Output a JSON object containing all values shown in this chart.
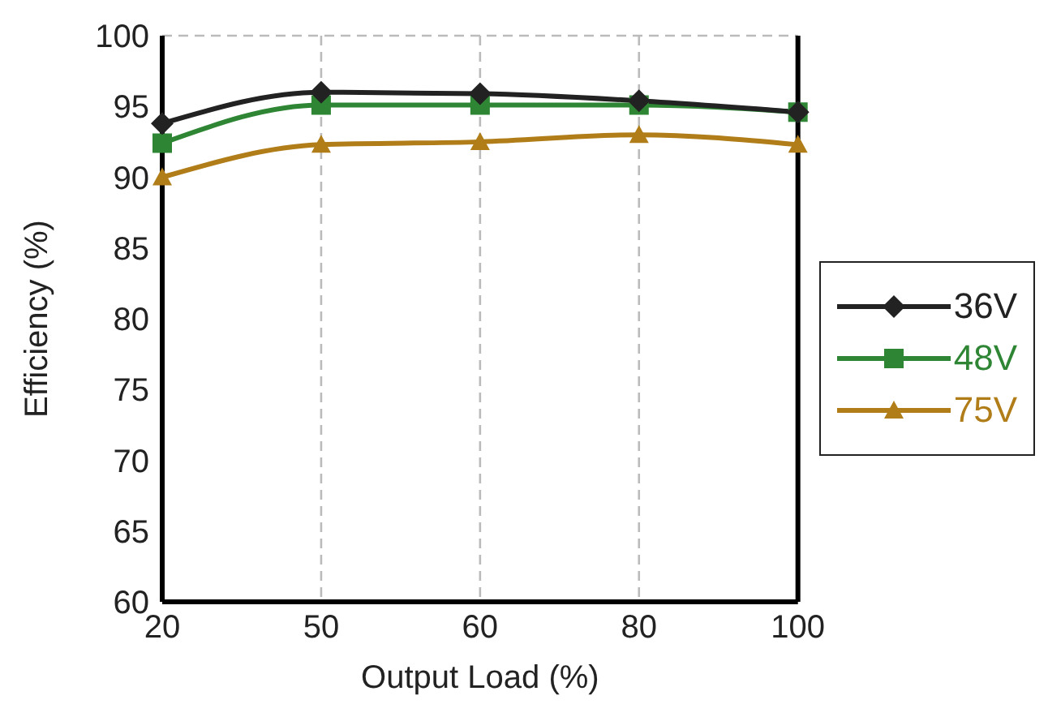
{
  "chart_data": {
    "type": "line",
    "xlabel": "Output Load (%)",
    "ylabel": "Efficiency (%)",
    "categories": [
      "20",
      "50",
      "60",
      "80",
      "100"
    ],
    "series": [
      {
        "name": "36V",
        "color": "#222222",
        "marker": "diamond",
        "values": [
          93.8,
          96.0,
          95.9,
          95.4,
          94.6
        ]
      },
      {
        "name": "48V",
        "color": "#2e8534",
        "marker": "square",
        "values": [
          92.4,
          95.1,
          95.1,
          95.1,
          94.6
        ]
      },
      {
        "name": "75V",
        "color": "#b07d18",
        "marker": "triangle",
        "values": [
          90.0,
          92.3,
          92.5,
          93.0,
          92.3
        ]
      }
    ],
    "ylim": [
      60,
      100
    ],
    "yticks": [
      60,
      65,
      70,
      75,
      80,
      85,
      90,
      95,
      100
    ],
    "grid": true,
    "legend": "right",
    "line_style": "solid"
  }
}
